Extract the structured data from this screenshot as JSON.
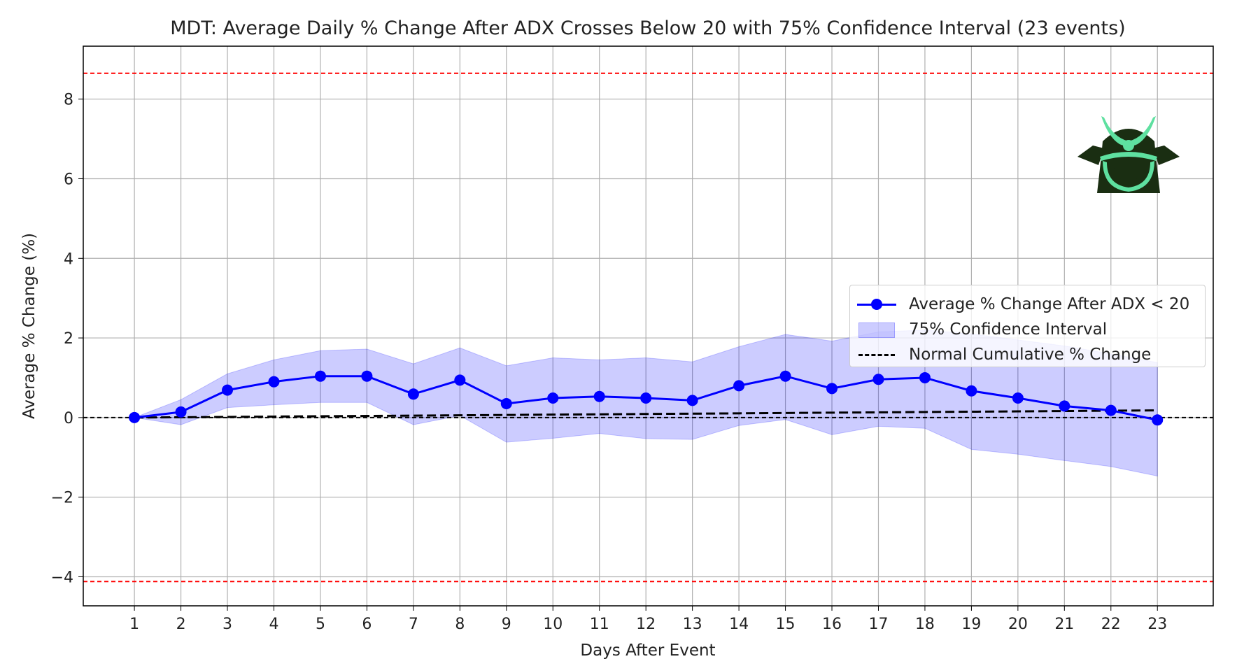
{
  "chart_data": {
    "type": "line",
    "title": "MDT: Average Daily % Change After ADX Crosses Below 20 with 75% Confidence Interval (23 events)",
    "xlabel": "Days After Event",
    "ylabel": "Average % Change (%)",
    "x": [
      1,
      2,
      3,
      4,
      5,
      6,
      7,
      8,
      9,
      10,
      11,
      12,
      13,
      14,
      15,
      16,
      17,
      18,
      19,
      20,
      21,
      22,
      23
    ],
    "xlim": [
      -0.1,
      24.2
    ],
    "ylim": [
      -4.73,
      9.33
    ],
    "yticks": [
      -4,
      -2,
      0,
      2,
      4,
      6,
      8
    ],
    "ytick_labels": [
      "−4",
      "−2",
      "0",
      "2",
      "4",
      "6",
      "8"
    ],
    "grid": true,
    "legend_position": "center-right",
    "series": [
      {
        "name": "Average % Change After ADX < 20",
        "kind": "line-marker",
        "color": "#0000ff",
        "values": [
          0,
          0.14,
          0.69,
          0.9,
          1.04,
          1.04,
          0.59,
          0.94,
          0.35,
          0.49,
          0.53,
          0.49,
          0.43,
          0.8,
          1.04,
          0.73,
          0.96,
          1.0,
          0.67,
          0.49,
          0.29,
          0.18,
          -0.06
        ]
      },
      {
        "name": "75% Confidence Interval",
        "kind": "band",
        "color": "#0000ff",
        "lower": [
          0,
          -0.18,
          0.25,
          0.32,
          0.38,
          0.38,
          -0.18,
          0.05,
          -0.62,
          -0.52,
          -0.4,
          -0.53,
          -0.55,
          -0.2,
          -0.05,
          -0.43,
          -0.22,
          -0.27,
          -0.8,
          -0.92,
          -1.08,
          -1.23,
          -1.47
        ],
        "upper": [
          0,
          0.45,
          1.1,
          1.45,
          1.68,
          1.72,
          1.35,
          1.75,
          1.3,
          1.5,
          1.45,
          1.5,
          1.4,
          1.78,
          2.09,
          1.92,
          2.15,
          2.2,
          2.1,
          1.95,
          1.8,
          1.6,
          1.38
        ]
      },
      {
        "name": "Normal Cumulative % Change",
        "kind": "dashed",
        "color": "#000000",
        "values": [
          0,
          0.008,
          0.016,
          0.025,
          0.033,
          0.041,
          0.049,
          0.057,
          0.065,
          0.074,
          0.082,
          0.09,
          0.098,
          0.106,
          0.115,
          0.123,
          0.131,
          0.139,
          0.147,
          0.155,
          0.164,
          0.172,
          0.18
        ]
      }
    ],
    "hlines": [
      {
        "y": 0,
        "color": "#000000",
        "style": "dashed"
      },
      {
        "y": 8.65,
        "color": "#ff0000",
        "style": "dashed"
      },
      {
        "y": -4.12,
        "color": "#ff0000",
        "style": "dashed"
      }
    ]
  },
  "logo": {
    "name": "samurai-logo",
    "colors": [
      "#1a2e12",
      "#5ee0a0"
    ]
  }
}
